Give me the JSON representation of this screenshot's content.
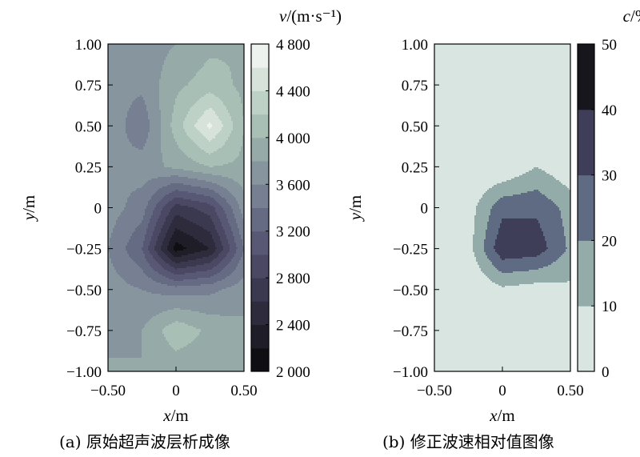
{
  "chart_data": [
    {
      "type": "heatmap",
      "panel": "(a)",
      "caption": "(a) 原始超声波层析成像",
      "xlabel_var": "x",
      "xlabel_unit": "/m",
      "ylabel_var": "y",
      "ylabel_unit": "/m",
      "xlim": [
        -0.5,
        0.5
      ],
      "ylim": [
        -1.0,
        1.0
      ],
      "xticks": [
        "−0.50",
        "0",
        "0.50"
      ],
      "yticks": [
        "1.00",
        "0.75",
        "0.50",
        "0.25",
        "0",
        "−0.25",
        "−0.50",
        "−0.75",
        "−1.00"
      ],
      "colorbar": {
        "label_var": "v",
        "label_unit": "/(m·s⁻¹)",
        "min": 2000,
        "max": 4800,
        "step": 200,
        "ticks": [
          "4 800",
          "4 400",
          "4 000",
          "3 600",
          "3 200",
          "2 800",
          "2 400",
          "2 000"
        ],
        "colors": [
          "#0f0f13",
          "#1f1e28",
          "#2d2b3c",
          "#3b3950",
          "#4a4863",
          "#585874",
          "#666b84",
          "#768092",
          "#86959e",
          "#96aaa8",
          "#a8bfb5",
          "#bdd1c6",
          "#d6e2da",
          "#eef2ee"
        ]
      },
      "x": [
        -0.5,
        -0.25,
        0,
        0.25,
        0.5
      ],
      "y": [
        -1.0,
        -0.75,
        -0.5,
        -0.25,
        0,
        0.25,
        0.5,
        0.75,
        1.0
      ],
      "z": [
        [
          3850,
          3800,
          3850,
          3850,
          3900
        ],
        [
          3700,
          3800,
          4150,
          3950,
          3850
        ],
        [
          3700,
          3600,
          3500,
          3550,
          3700
        ],
        [
          3600,
          3200,
          2100,
          2400,
          3400
        ],
        [
          3700,
          3500,
          2700,
          2900,
          3700
        ],
        [
          3600,
          3700,
          3850,
          4000,
          3950
        ],
        [
          3750,
          3450,
          4100,
          4650,
          4000
        ],
        [
          3650,
          3650,
          3950,
          4100,
          3950
        ],
        [
          3750,
          3700,
          3800,
          3950,
          4000
        ]
      ]
    },
    {
      "type": "heatmap",
      "panel": "(b)",
      "caption": "(b) 修正波速相对值图像",
      "xlabel_var": "x",
      "xlabel_unit": "/m",
      "ylabel_var": "y",
      "ylabel_unit": "/m",
      "xlim": [
        -0.5,
        0.5
      ],
      "ylim": [
        -1.0,
        1.0
      ],
      "xticks": [
        "−0.50",
        "0",
        "0.50"
      ],
      "yticks": [
        "1.00",
        "0.75",
        "0.50",
        "0.25",
        "0",
        "−0.25",
        "−0.50",
        "−0.75",
        "−1.00"
      ],
      "colorbar": {
        "label_var": "c",
        "label_unit": "/%",
        "min": 0,
        "max": 50,
        "step": 10,
        "ticks": [
          "50",
          "40",
          "30",
          "20",
          "10",
          "0"
        ],
        "colors": [
          "#d9e5e0",
          "#93aca9",
          "#5f6b83",
          "#3f3e58",
          "#17161d"
        ]
      },
      "x": [
        -0.5,
        -0.25,
        0,
        0.25,
        0.5
      ],
      "y": [
        -1.0,
        -0.75,
        -0.5,
        -0.25,
        0,
        0.25,
        0.5,
        0.75,
        1.0
      ],
      "z": [
        [
          0,
          0,
          0,
          0,
          0
        ],
        [
          0,
          0,
          0,
          0,
          0
        ],
        [
          0,
          0,
          8,
          5,
          8
        ],
        [
          0,
          6,
          38,
          36,
          18
        ],
        [
          0,
          5,
          27,
          28,
          16
        ],
        [
          0,
          0,
          0,
          10,
          2
        ],
        [
          0,
          0,
          0,
          0,
          0
        ],
        [
          0,
          0,
          0,
          0,
          0
        ],
        [
          0,
          0,
          0,
          0,
          0
        ]
      ]
    }
  ]
}
